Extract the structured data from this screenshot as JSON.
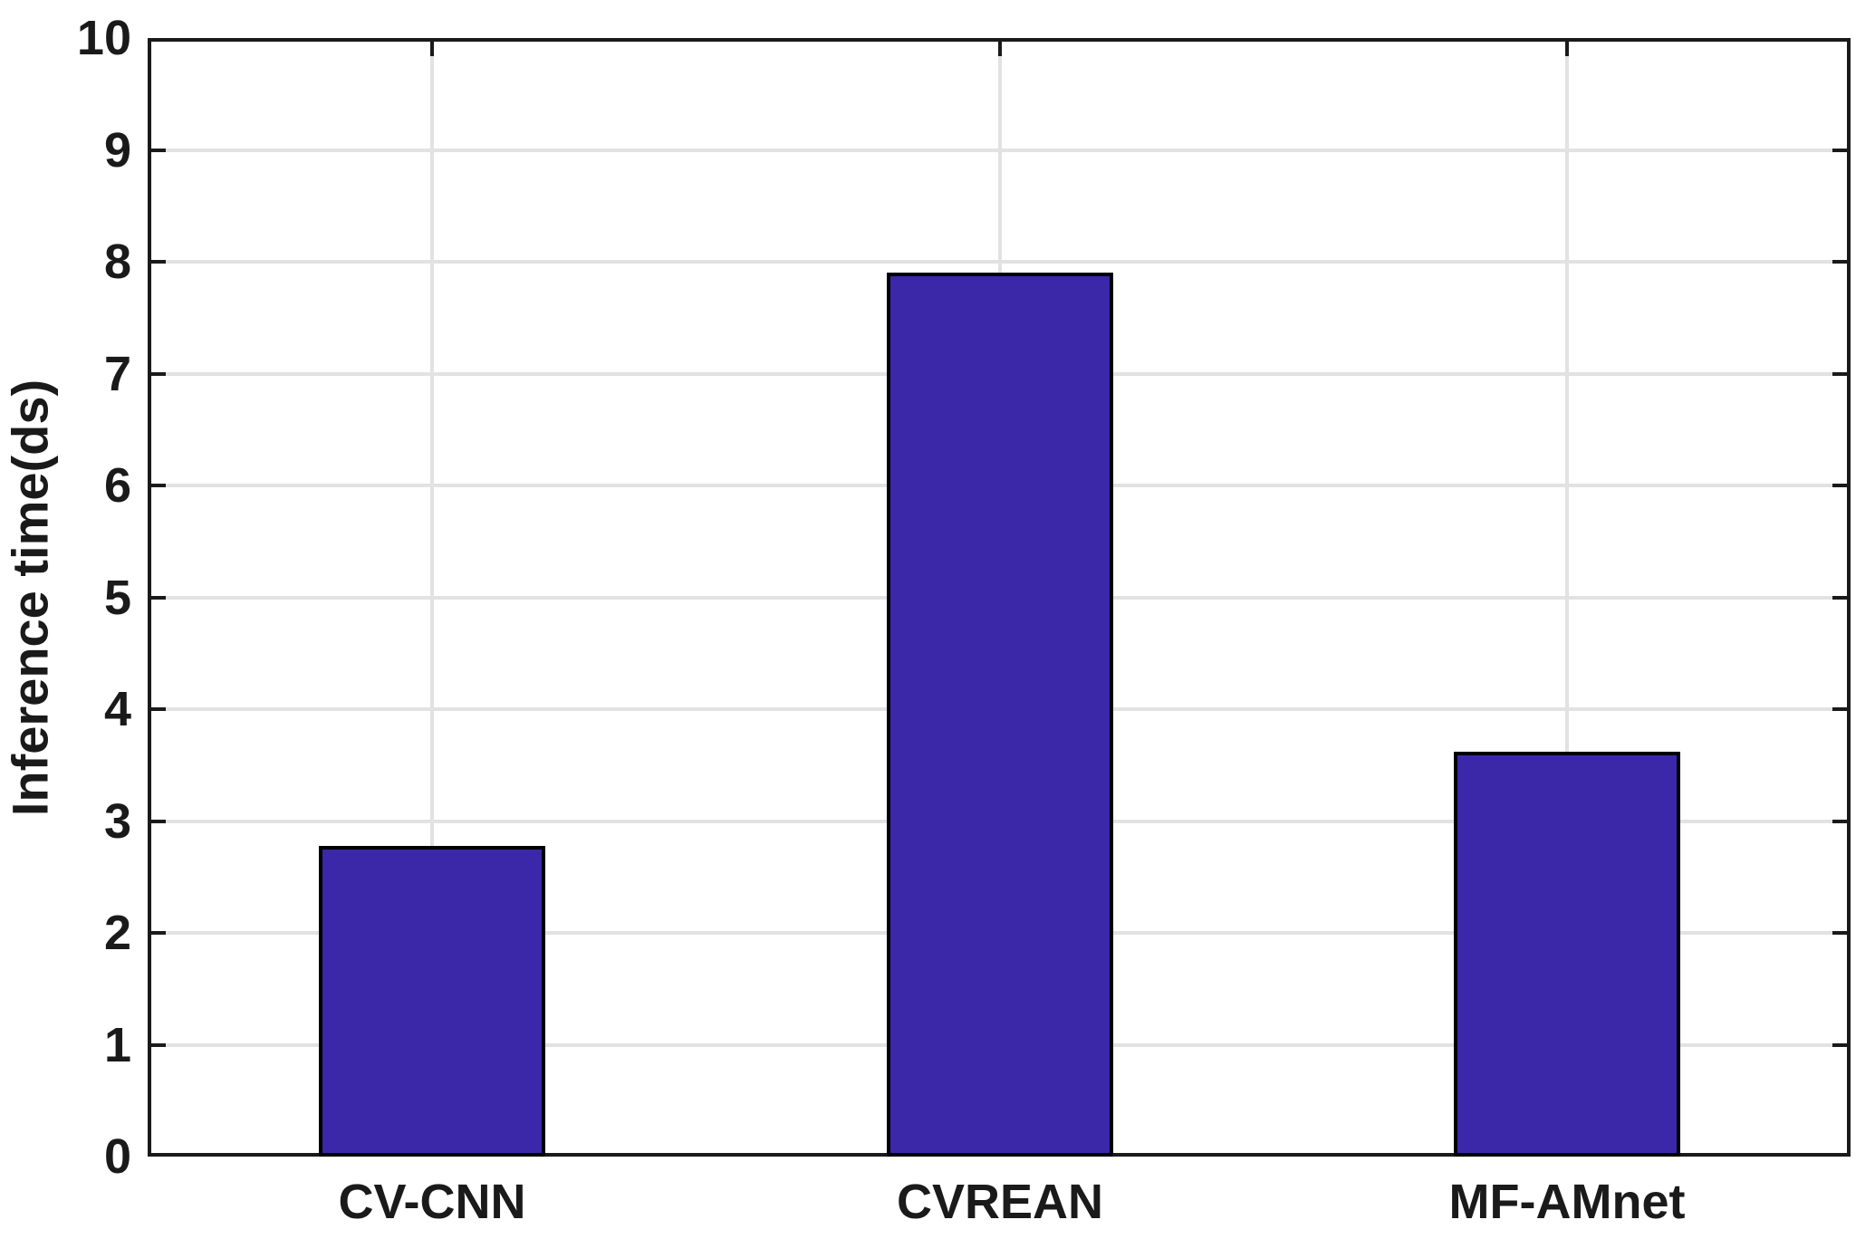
{
  "chart_data": {
    "type": "bar",
    "categories": [
      "CV-CNN",
      "CVREAN",
      "MF-AMnet"
    ],
    "values": [
      2.78,
      7.9,
      3.62
    ],
    "title": "",
    "xlabel": "",
    "ylabel": "Inference time(ds)",
    "ylim": [
      0,
      10
    ],
    "yticks": [
      0,
      1,
      2,
      3,
      4,
      5,
      6,
      7,
      8,
      9,
      10
    ],
    "grid": "on",
    "legend": "none",
    "bar_color": "#3B28A8",
    "bar_edge_color": "#000000",
    "axis_color": "#1a1a1a",
    "grid_color": "#e2e2e2",
    "background_color": "#ffffff"
  }
}
